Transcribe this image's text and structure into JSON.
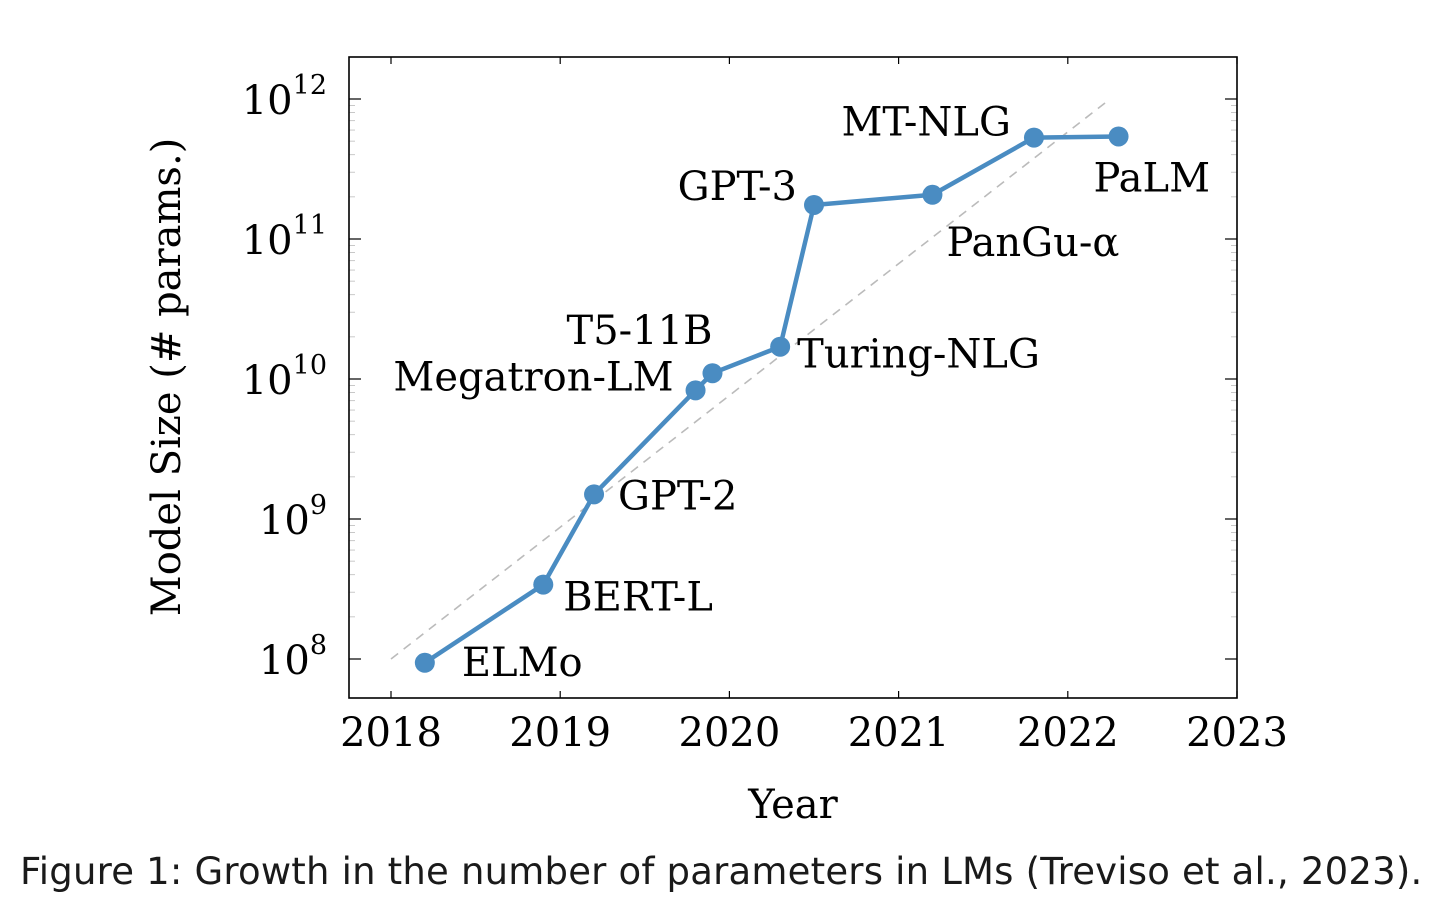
{
  "chart_data": {
    "type": "line",
    "xlabel": "Year",
    "ylabel": "Model Size (# params.)",
    "xlim": [
      2018,
      2023
    ],
    "ylim": [
      100000000.0,
      1000000000000.0
    ],
    "yscale": "log",
    "xticks": [
      "2018",
      "2019",
      "2020",
      "2021",
      "2022",
      "2023"
    ],
    "yticks": [
      {
        "base": "10",
        "exp": "8"
      },
      {
        "base": "10",
        "exp": "9"
      },
      {
        "base": "10",
        "exp": "10"
      },
      {
        "base": "10",
        "exp": "11"
      },
      {
        "base": "10",
        "exp": "12"
      }
    ],
    "series": [
      {
        "color": "#4a8cc2",
        "points": [
          {
            "label": "ELMo",
            "x": 2018.2,
            "y": 94000000
          },
          {
            "label": "BERT-L",
            "x": 2018.9,
            "y": 340000000
          },
          {
            "label": "GPT-2",
            "x": 2019.2,
            "y": 1500000000
          },
          {
            "label": "Megatron-LM",
            "x": 2019.8,
            "y": 8300000000
          },
          {
            "label": "T5-11B",
            "x": 2019.9,
            "y": 11000000000
          },
          {
            "label": "Turing-NLG",
            "x": 2020.3,
            "y": 17000000000
          },
          {
            "label": "GPT-3",
            "x": 2020.5,
            "y": 175000000000
          },
          {
            "label": "PanGu-α",
            "x": 2021.2,
            "y": 207000000000
          },
          {
            "label": "MT-NLG",
            "x": 2021.8,
            "y": 530000000000
          },
          {
            "label": "PaLM",
            "x": 2022.3,
            "y": 540000000000
          }
        ]
      }
    ],
    "trend_line": {
      "color": "#bbbbbb",
      "style": "dashed",
      "from": {
        "x": 2018,
        "y": 100000000
      },
      "to": {
        "x": 2022.25,
        "y": 1000000000000
      }
    },
    "grid": false
  },
  "caption": {
    "label": "Figure 1:",
    "text": " Growth in the number of parameters in LMs (Treviso et al., 2023)."
  }
}
